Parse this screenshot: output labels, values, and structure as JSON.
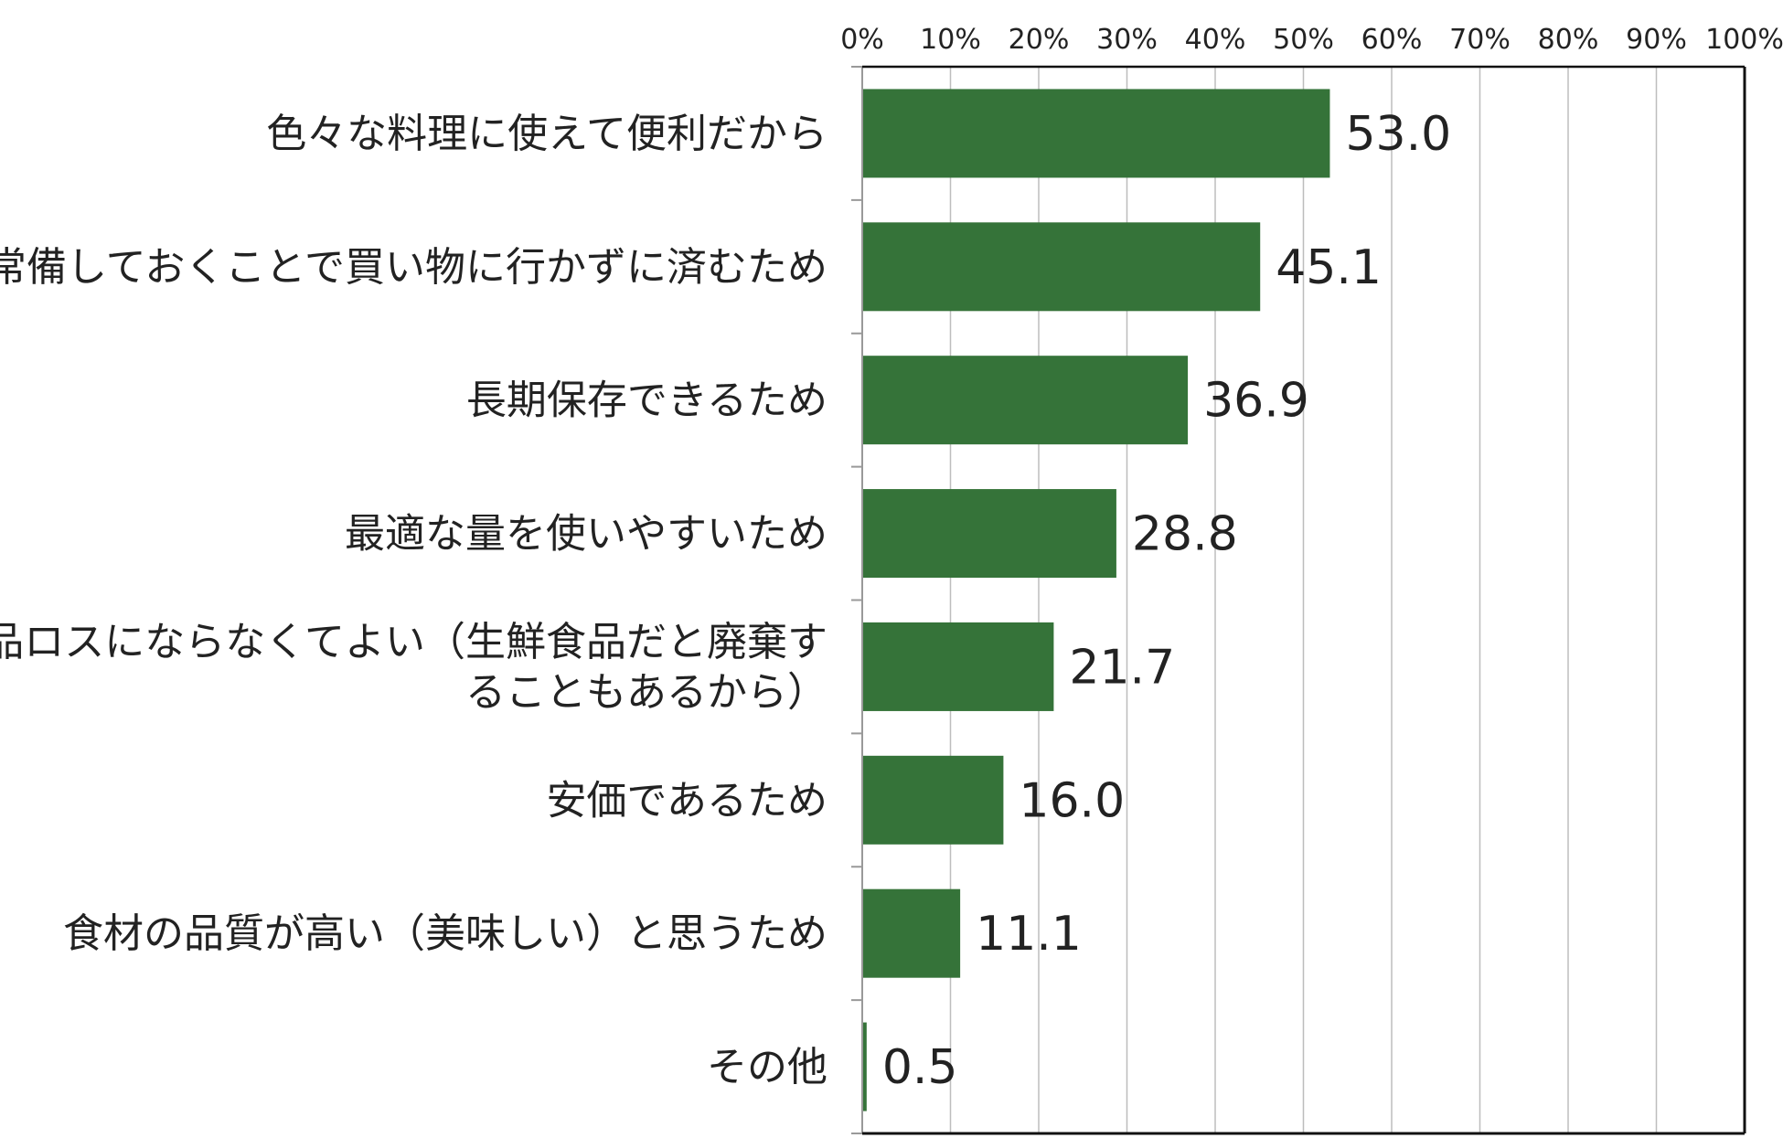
{
  "chart_data": {
    "type": "bar",
    "orientation": "horizontal",
    "title": "",
    "xlabel": "",
    "ylabel": "",
    "xlim": [
      0,
      100
    ],
    "x_ticks": [
      "0%",
      "10%",
      "20%",
      "30%",
      "40%",
      "50%",
      "60%",
      "70%",
      "80%",
      "90%",
      "100%"
    ],
    "grid": true,
    "legend": "none",
    "bar_color": "#357339",
    "categories": [
      [
        "色々な料理に使えて便利だから"
      ],
      [
        "常備しておくことで買い物に行かずに済むため"
      ],
      [
        "長期保存できるため"
      ],
      [
        "最適な量を使いやすいため"
      ],
      [
        "食品ロスにならなくてよい（生鮮食品だと廃棄す",
        "ることもあるから）"
      ],
      [
        "安価であるため"
      ],
      [
        "食材の品質が高い（美味しい）と思うため"
      ],
      [
        "その他"
      ]
    ],
    "values": [
      53.0,
      45.1,
      36.9,
      28.8,
      21.7,
      16.0,
      11.1,
      0.5
    ],
    "value_labels": [
      "53.0",
      "45.1",
      "36.9",
      "28.8",
      "21.7",
      "16.0",
      "11.1",
      "0.5"
    ]
  }
}
